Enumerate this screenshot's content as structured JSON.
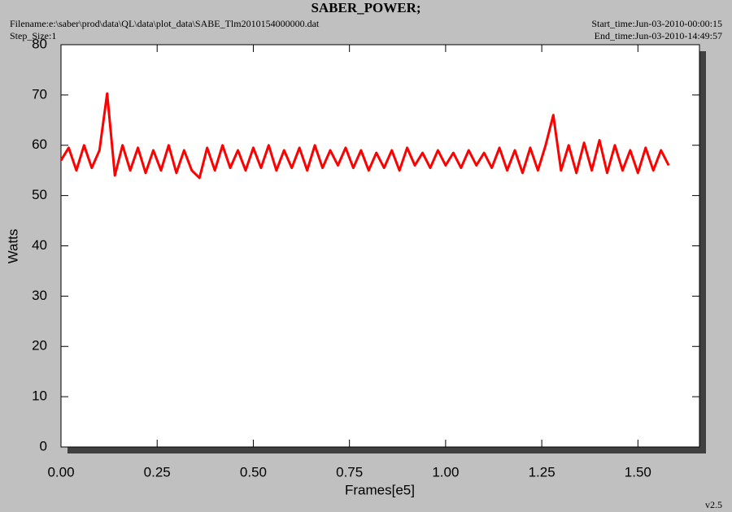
{
  "chart_data": {
    "type": "line",
    "title": "SABER_POWER;",
    "filename": "Filename:e:\\saber\\prod\\data\\QL\\data\\plot_data\\SABE_Tlm2010154000000.dat",
    "step_size": "Step_Size:1",
    "start_time": "Start_time:Jun-03-2010-00:00:15",
    "end_time": "End_time:Jun-03-2010-14:49:57",
    "version": "v2.5",
    "xlabel": "Frames[e5]",
    "ylabel": "Watts",
    "x": [
      0,
      0.02,
      0.04,
      0.06,
      0.08,
      0.1,
      0.12,
      0.14,
      0.16,
      0.18,
      0.2,
      0.22,
      0.24,
      0.26,
      0.28,
      0.3,
      0.32,
      0.34,
      0.36,
      0.38,
      0.4,
      0.42,
      0.44,
      0.46,
      0.48,
      0.5,
      0.52,
      0.54,
      0.56,
      0.58,
      0.6,
      0.62,
      0.64,
      0.66,
      0.68,
      0.7,
      0.72,
      0.74,
      0.76,
      0.78,
      0.8,
      0.82,
      0.84,
      0.86,
      0.88,
      0.9,
      0.92,
      0.94,
      0.96,
      0.98,
      1.0,
      1.02,
      1.04,
      1.06,
      1.08,
      1.1,
      1.12,
      1.14,
      1.16,
      1.18,
      1.2,
      1.22,
      1.24,
      1.26,
      1.28,
      1.3,
      1.32,
      1.34,
      1.36,
      1.38,
      1.4,
      1.42,
      1.44,
      1.46,
      1.48,
      1.5,
      1.52,
      1.54,
      1.56,
      1.58
    ],
    "series": [
      {
        "color": "#ff0000",
        "values": [
          57,
          59.5,
          55,
          60,
          55.5,
          59,
          70.3,
          54,
          60,
          55,
          59.5,
          54.5,
          59,
          55,
          60,
          54.5,
          59,
          55,
          53.5,
          59.5,
          55,
          60,
          55.5,
          59,
          55,
          59.5,
          55.5,
          60,
          55,
          59,
          55.5,
          59.5,
          55,
          60,
          55.5,
          59,
          56,
          59.5,
          55.5,
          59,
          55,
          58.5,
          55.5,
          59,
          55,
          59.5,
          56,
          58.5,
          55.5,
          59,
          56,
          58.5,
          55.5,
          59,
          56,
          58.5,
          55.5,
          59.5,
          55,
          59,
          54.5,
          59.5,
          55,
          60,
          66,
          55,
          60,
          54.5,
          60.5,
          55,
          61,
          54.5,
          60,
          55,
          59,
          54.5,
          59.5,
          55,
          59,
          56
        ]
      }
    ],
    "xlim": [
      0,
      1.66
    ],
    "ylim": [
      0,
      80
    ],
    "xticks": [
      {
        "value": 0,
        "label": "0.00"
      },
      {
        "value": 0.25,
        "label": "0.25"
      },
      {
        "value": 0.5,
        "label": "0.50"
      },
      {
        "value": 0.75,
        "label": "0.75"
      },
      {
        "value": 1,
        "label": "1.00"
      },
      {
        "value": 1.25,
        "label": "1.25"
      },
      {
        "value": 1.5,
        "label": "1.50"
      }
    ],
    "yticks": [
      0,
      10,
      20,
      30,
      40,
      50,
      60,
      70,
      80
    ]
  }
}
